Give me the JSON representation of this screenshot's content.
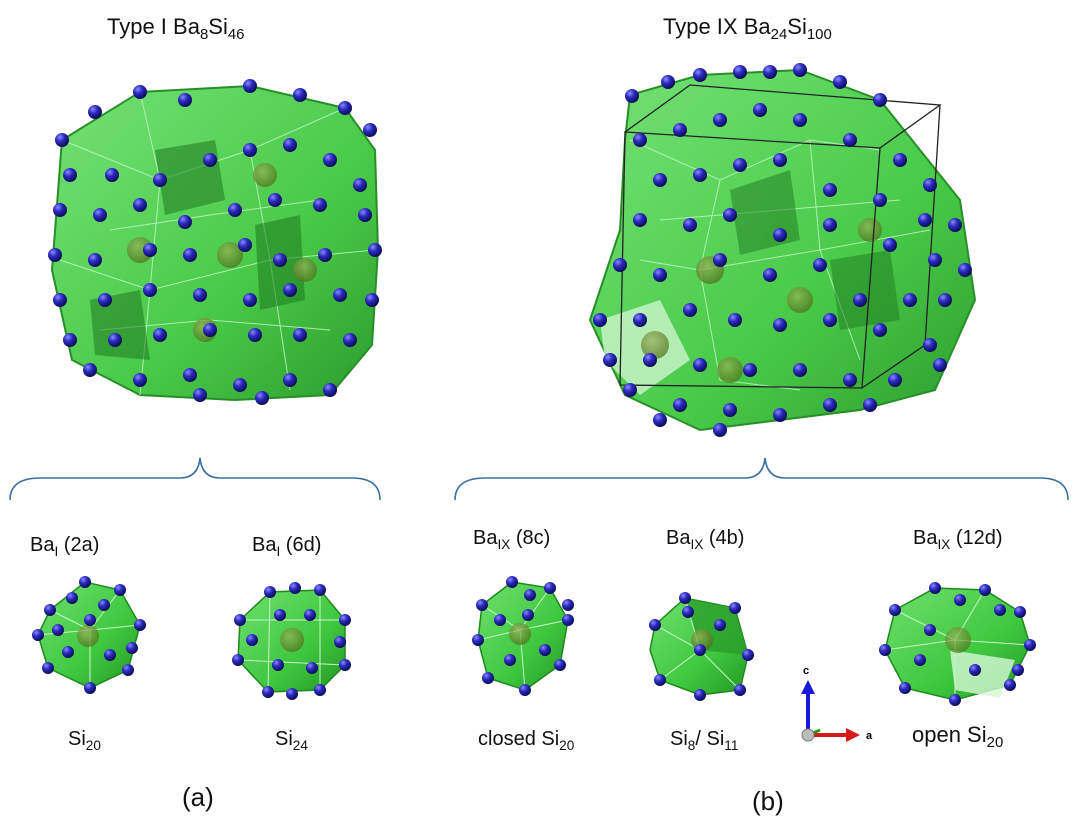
{
  "left": {
    "title": {
      "prefix": "Type I Ba",
      "sub1": "8",
      "mid": "Si",
      "sub2": "46"
    },
    "cages": [
      {
        "site": {
          "base": "Ba",
          "sub": "I",
          "pos": " (2a)"
        },
        "cage": {
          "base": "Si",
          "sub": "20",
          "pre": ""
        }
      },
      {
        "site": {
          "base": "Ba",
          "sub": "I",
          "pos": " (6d)"
        },
        "cage": {
          "base": "Si",
          "sub": "24",
          "pre": ""
        }
      }
    ],
    "panel": "(a)"
  },
  "right": {
    "title": {
      "prefix": "Type IX Ba",
      "sub1": "24",
      "mid": "Si",
      "sub2": "100"
    },
    "cages": [
      {
        "site": {
          "base": "Ba",
          "sub": "IX",
          "pos": " (8c)"
        },
        "cage": {
          "pre": "closed Si",
          "sub": "20"
        }
      },
      {
        "site": {
          "base": "Ba",
          "sub": "IX",
          "pos": " (4b)"
        },
        "cage": {
          "pre": "Si",
          "sub": "8",
          "post": "/ Si",
          "sub2": "11"
        }
      },
      {
        "site": {
          "base": "Ba",
          "sub": "IX",
          "pos": " (12d)"
        },
        "cage": {
          "pre": "open Si",
          "sub": "20"
        }
      }
    ],
    "panel": "(b)"
  },
  "axes": {
    "c": "c",
    "a": "a"
  },
  "colors": {
    "cage_fill": "#3fc83f",
    "cage_edge": "#1c8a1c",
    "atom": "#2b2bbf",
    "atom_highlight": "#7a7aff",
    "guest": "#6b8e23",
    "brace": "#3a6fa0",
    "axis_c": "#1a1adb",
    "axis_a": "#d61a1a"
  }
}
